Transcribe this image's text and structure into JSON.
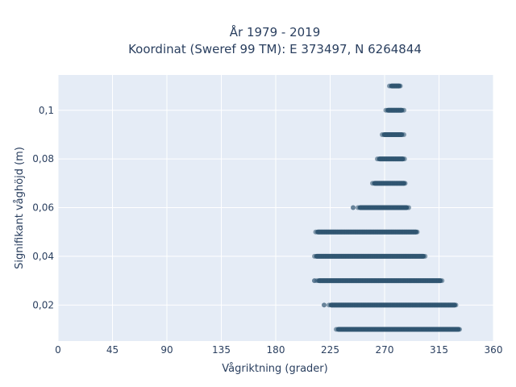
{
  "chart_data": {
    "type": "scatter",
    "title_line1": "År 1979 - 2019",
    "title_line2": "Koordinat (Sweref 99 TM): E 373497, N 6264844",
    "xlabel": "Vågriktning (grader)",
    "ylabel": "Signifikant våghöjd (m)",
    "xlim": [
      0,
      360
    ],
    "ylim": [
      0.0052,
      0.1145
    ],
    "x_ticks": [
      "0",
      "45",
      "90",
      "135",
      "180",
      "225",
      "270",
      "315",
      "360"
    ],
    "x_tick_values": [
      0,
      45,
      90,
      135,
      180,
      225,
      270,
      315,
      360
    ],
    "y_ticks": [
      "0,02",
      "0,04",
      "0,06",
      "0,08",
      "0,1"
    ],
    "y_tick_values": [
      0.02,
      0.04,
      0.06,
      0.08,
      0.1
    ],
    "grid": true,
    "marker_color": "#2e5370",
    "background_color": "#e5ecf6",
    "bands": [
      {
        "y": 0.01,
        "x_min": 230,
        "x_max": 333,
        "outliers": []
      },
      {
        "y": 0.02,
        "x_min": 224,
        "x_max": 330,
        "outliers": [
          220
        ]
      },
      {
        "y": 0.03,
        "x_min": 214,
        "x_max": 318,
        "outliers": [
          212
        ]
      },
      {
        "y": 0.04,
        "x_min": 212,
        "x_max": 304,
        "outliers": []
      },
      {
        "y": 0.05,
        "x_min": 213,
        "x_max": 298,
        "outliers": []
      },
      {
        "y": 0.06,
        "x_min": 248,
        "x_max": 290,
        "outliers": [
          244
        ]
      },
      {
        "y": 0.07,
        "x_min": 260,
        "x_max": 288,
        "outliers": []
      },
      {
        "y": 0.08,
        "x_min": 264,
        "x_max": 287,
        "outliers": []
      },
      {
        "y": 0.09,
        "x_min": 268,
        "x_max": 286,
        "outliers": []
      },
      {
        "y": 0.1,
        "x_min": 271,
        "x_max": 286,
        "outliers": []
      },
      {
        "y": 0.11,
        "x_min": 274,
        "x_max": 284,
        "outliers": []
      }
    ]
  }
}
